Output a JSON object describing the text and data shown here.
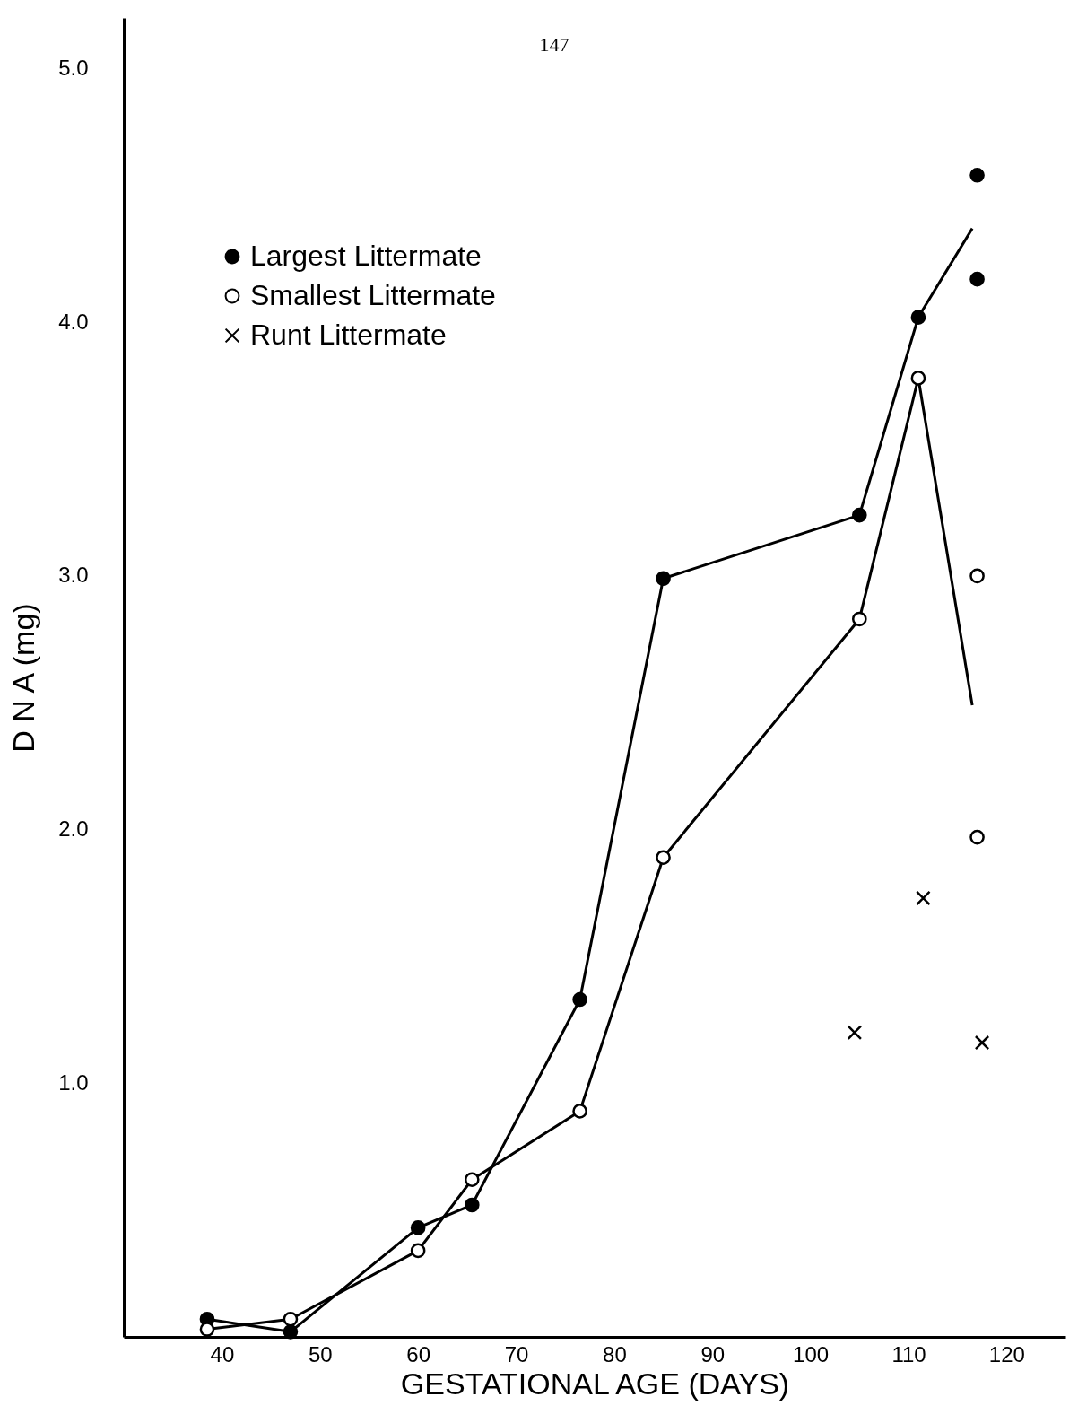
{
  "chart_data": {
    "type": "scatter",
    "xlabel": "GESTATIONAL  AGE (DAYS)",
    "ylabel": "D N A  (mg)",
    "annotations": [
      "147"
    ],
    "xlim": [
      30,
      126
    ],
    "xticks": [
      40,
      50,
      60,
      70,
      80,
      90,
      100,
      110,
      120
    ],
    "ylim": [
      0,
      5.2
    ],
    "yticks": [
      {
        "value": 1,
        "label": "1.0"
      },
      {
        "value": 2,
        "label": "2.0"
      },
      {
        "value": 3,
        "label": "3.0"
      },
      {
        "value": 4,
        "label": "4.0"
      },
      {
        "value": 5,
        "label": "5.0"
      }
    ],
    "legend": "top left",
    "grid": false,
    "series": [
      {
        "type": "line",
        "color": "#000000",
        "marker": "none",
        "x": [
          38.5,
          47,
          60,
          65.5,
          76.5,
          85,
          105,
          111,
          116.5
        ],
        "values": [
          0.07,
          0.02,
          0.43,
          0.52,
          1.33,
          2.99,
          3.24,
          4.02,
          4.37
        ]
      },
      {
        "type": "line",
        "color": "#000000",
        "marker": "none",
        "x": [
          38.5,
          47,
          60,
          65.5,
          76.5,
          85,
          105,
          111,
          116.5
        ],
        "values": [
          0.03,
          0.07,
          0.34,
          0.62,
          0.89,
          1.89,
          2.83,
          3.78,
          2.49
        ]
      },
      {
        "name": "Largest Littermate",
        "type": "scatter",
        "color": "#000000",
        "marker": "circle",
        "x": [
          38.5,
          47,
          60,
          65.5,
          76.5,
          85,
          105,
          111,
          117,
          117
        ],
        "values": [
          0.07,
          0.02,
          0.43,
          0.52,
          1.33,
          2.99,
          3.24,
          4.02,
          4.58,
          4.17
        ]
      },
      {
        "name": "Smallest Littermate",
        "type": "scatter",
        "color": "#ffffff",
        "marker": "circle",
        "x": [
          38.5,
          47,
          60,
          65.5,
          76.5,
          85,
          105,
          111,
          117,
          117
        ],
        "values": [
          0.03,
          0.07,
          0.34,
          0.62,
          0.89,
          1.89,
          2.83,
          3.78,
          3.0,
          1.97
        ]
      },
      {
        "name": "Runt Littermate",
        "type": "scatter",
        "color": "#000000",
        "marker": "cross",
        "x": [
          104.5,
          111.5,
          117.5
        ],
        "values": [
          1.2,
          1.73,
          1.16
        ]
      }
    ]
  }
}
